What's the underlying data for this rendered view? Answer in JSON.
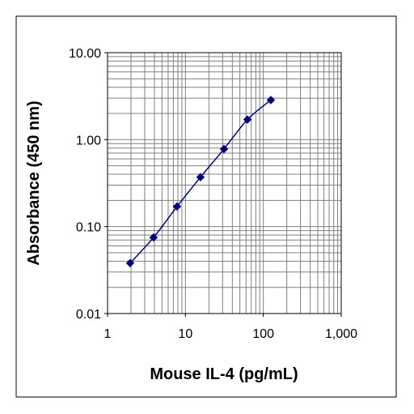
{
  "chart_data": {
    "type": "line",
    "title": "",
    "xlabel": "Mouse IL-4 (pg/mL)",
    "ylabel": "Absorbance (450 nm)",
    "xscale": "log",
    "yscale": "log",
    "xlim": [
      1,
      1000
    ],
    "ylim": [
      0.01,
      10
    ],
    "x_tick_labels": [
      "1",
      "10",
      "100",
      "1,000"
    ],
    "y_tick_labels": [
      "10.00",
      "1.00",
      "0.10",
      "0.01"
    ],
    "grid": true,
    "legend": "none",
    "line_color": "#000080",
    "marker": "diamond",
    "series": [
      {
        "x": [
          1.95,
          3.9,
          7.8,
          15.6,
          31.25,
          62.5,
          125
        ],
        "y": [
          0.038,
          0.075,
          0.17,
          0.37,
          0.78,
          1.7,
          2.85
        ]
      }
    ]
  }
}
